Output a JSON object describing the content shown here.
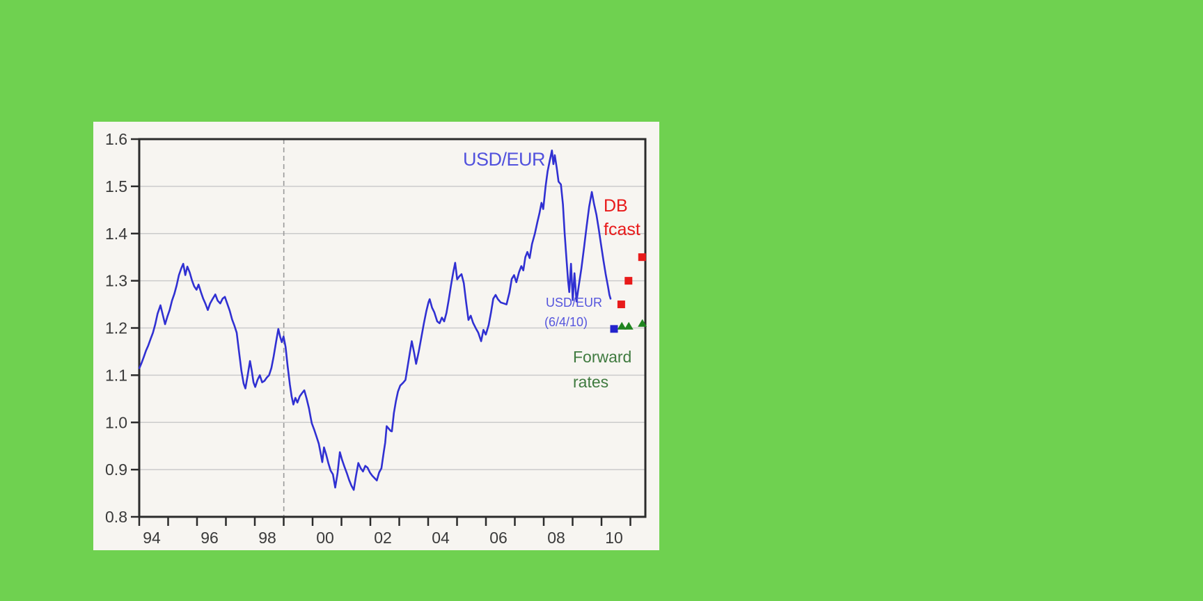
{
  "colors": {
    "background": "#6fd150",
    "card": "#f7f5f1",
    "grid": "#cbcbcb",
    "axis": "#2b2b2b",
    "dashed_line": "#999999",
    "tick_text": "#3a3a3a"
  },
  "annotations": {
    "usd_eur": {
      "text": "USD/EUR",
      "color": "#5151dd"
    },
    "db_fcast": {
      "line1": "DB",
      "line2": "fcast",
      "color": "#e81a1a"
    },
    "spot": {
      "line1": "USD/EUR",
      "line2": "(6/4/10)",
      "color": "#5555dd"
    },
    "forward": {
      "line1": "Forward",
      "line2": "rates",
      "color": "#3f7a3f"
    }
  },
  "chart_data": {
    "type": "line",
    "x_axis": {
      "min": 1993.566,
      "max": 2011.084,
      "minor_tick_start": 1993.566,
      "minor_tick_step": 1,
      "minor_tick_count": 18,
      "labels": [
        [
          1994,
          "94"
        ],
        [
          1996,
          "96"
        ],
        [
          1998,
          "98"
        ],
        [
          2000,
          "00"
        ],
        [
          2002,
          "02"
        ],
        [
          2004,
          "04"
        ],
        [
          2006,
          "06"
        ],
        [
          2008,
          "08"
        ],
        [
          2010,
          "10"
        ]
      ]
    },
    "y_axis": {
      "min": 0.8,
      "max": 1.6,
      "ticks": [
        [
          0.8,
          "0.8"
        ],
        [
          0.9,
          "0.9"
        ],
        [
          1.0,
          "1.0"
        ],
        [
          1.1,
          "1.1"
        ],
        [
          1.2,
          "1.2"
        ],
        [
          1.3,
          "1.3"
        ],
        [
          1.4,
          "1.4"
        ],
        [
          1.5,
          "1.5"
        ],
        [
          1.6,
          "1.6"
        ]
      ]
    },
    "grid": true,
    "event_line_year": 1998.57,
    "series": [
      {
        "name": "USD/EUR",
        "kind": "line",
        "color": "#3030d2",
        "points": [
          [
            1993.57,
            1.115
          ],
          [
            1993.64,
            1.125
          ],
          [
            1993.72,
            1.138
          ],
          [
            1993.8,
            1.152
          ],
          [
            1993.88,
            1.163
          ],
          [
            1993.96,
            1.177
          ],
          [
            1994.04,
            1.19
          ],
          [
            1994.12,
            1.208
          ],
          [
            1994.2,
            1.23
          ],
          [
            1994.3,
            1.248
          ],
          [
            1994.38,
            1.228
          ],
          [
            1994.46,
            1.208
          ],
          [
            1994.54,
            1.224
          ],
          [
            1994.62,
            1.238
          ],
          [
            1994.7,
            1.258
          ],
          [
            1994.78,
            1.272
          ],
          [
            1994.86,
            1.29
          ],
          [
            1994.94,
            1.312
          ],
          [
            1995.02,
            1.326
          ],
          [
            1995.09,
            1.336
          ],
          [
            1995.16,
            1.312
          ],
          [
            1995.23,
            1.33
          ],
          [
            1995.31,
            1.318
          ],
          [
            1995.39,
            1.301
          ],
          [
            1995.47,
            1.288
          ],
          [
            1995.55,
            1.281
          ],
          [
            1995.62,
            1.292
          ],
          [
            1995.7,
            1.276
          ],
          [
            1995.78,
            1.262
          ],
          [
            1995.86,
            1.251
          ],
          [
            1995.94,
            1.238
          ],
          [
            1996.02,
            1.252
          ],
          [
            1996.11,
            1.262
          ],
          [
            1996.2,
            1.271
          ],
          [
            1996.28,
            1.258
          ],
          [
            1996.37,
            1.252
          ],
          [
            1996.45,
            1.262
          ],
          [
            1996.53,
            1.266
          ],
          [
            1996.61,
            1.252
          ],
          [
            1996.7,
            1.236
          ],
          [
            1996.78,
            1.218
          ],
          [
            1996.86,
            1.205
          ],
          [
            1996.94,
            1.19
          ],
          [
            1997.02,
            1.15
          ],
          [
            1997.1,
            1.11
          ],
          [
            1997.18,
            1.082
          ],
          [
            1997.24,
            1.072
          ],
          [
            1997.32,
            1.1
          ],
          [
            1997.4,
            1.13
          ],
          [
            1997.46,
            1.11
          ],
          [
            1997.52,
            1.085
          ],
          [
            1997.58,
            1.075
          ],
          [
            1997.66,
            1.09
          ],
          [
            1997.74,
            1.1
          ],
          [
            1997.82,
            1.085
          ],
          [
            1997.9,
            1.088
          ],
          [
            1997.98,
            1.095
          ],
          [
            1998.06,
            1.1
          ],
          [
            1998.14,
            1.115
          ],
          [
            1998.22,
            1.14
          ],
          [
            1998.3,
            1.17
          ],
          [
            1998.38,
            1.198
          ],
          [
            1998.44,
            1.182
          ],
          [
            1998.5,
            1.17
          ],
          [
            1998.56,
            1.182
          ],
          [
            1998.63,
            1.16
          ],
          [
            1998.7,
            1.12
          ],
          [
            1998.78,
            1.08
          ],
          [
            1998.84,
            1.055
          ],
          [
            1998.9,
            1.038
          ],
          [
            1998.97,
            1.052
          ],
          [
            1999.04,
            1.042
          ],
          [
            1999.12,
            1.055
          ],
          [
            1999.2,
            1.062
          ],
          [
            1999.28,
            1.068
          ],
          [
            1999.36,
            1.05
          ],
          [
            1999.44,
            1.03
          ],
          [
            1999.5,
            1.01
          ],
          [
            1999.54,
            0.998
          ],
          [
            1999.62,
            0.985
          ],
          [
            1999.7,
            0.97
          ],
          [
            1999.78,
            0.955
          ],
          [
            1999.86,
            0.93
          ],
          [
            1999.9,
            0.916
          ],
          [
            1999.96,
            0.947
          ],
          [
            2000.03,
            0.933
          ],
          [
            2000.11,
            0.914
          ],
          [
            2000.19,
            0.898
          ],
          [
            2000.27,
            0.89
          ],
          [
            2000.35,
            0.862
          ],
          [
            2000.43,
            0.893
          ],
          [
            2000.51,
            0.937
          ],
          [
            2000.59,
            0.92
          ],
          [
            2000.67,
            0.906
          ],
          [
            2000.75,
            0.893
          ],
          [
            2000.83,
            0.878
          ],
          [
            2000.91,
            0.866
          ],
          [
            2000.99,
            0.857
          ],
          [
            2001.07,
            0.887
          ],
          [
            2001.15,
            0.914
          ],
          [
            2001.23,
            0.903
          ],
          [
            2001.31,
            0.896
          ],
          [
            2001.39,
            0.908
          ],
          [
            2001.47,
            0.904
          ],
          [
            2001.55,
            0.894
          ],
          [
            2001.63,
            0.887
          ],
          [
            2001.71,
            0.882
          ],
          [
            2001.79,
            0.877
          ],
          [
            2001.87,
            0.894
          ],
          [
            2001.95,
            0.903
          ],
          [
            2002.03,
            0.938
          ],
          [
            2002.08,
            0.957
          ],
          [
            2002.13,
            0.992
          ],
          [
            2002.2,
            0.987
          ],
          [
            2002.27,
            0.982
          ],
          [
            2002.31,
            0.981
          ],
          [
            2002.38,
            1.02
          ],
          [
            2002.45,
            1.045
          ],
          [
            2002.52,
            1.065
          ],
          [
            2002.6,
            1.078
          ],
          [
            2002.7,
            1.084
          ],
          [
            2002.78,
            1.09
          ],
          [
            2002.86,
            1.12
          ],
          [
            2002.94,
            1.15
          ],
          [
            2003.0,
            1.172
          ],
          [
            2003.08,
            1.148
          ],
          [
            2003.15,
            1.124
          ],
          [
            2003.24,
            1.15
          ],
          [
            2003.33,
            1.18
          ],
          [
            2003.42,
            1.21
          ],
          [
            2003.5,
            1.235
          ],
          [
            2003.58,
            1.255
          ],
          [
            2003.62,
            1.261
          ],
          [
            2003.7,
            1.243
          ],
          [
            2003.78,
            1.233
          ],
          [
            2003.88,
            1.214
          ],
          [
            2003.96,
            1.21
          ],
          [
            2004.04,
            1.222
          ],
          [
            2004.12,
            1.214
          ],
          [
            2004.2,
            1.232
          ],
          [
            2004.28,
            1.26
          ],
          [
            2004.36,
            1.292
          ],
          [
            2004.44,
            1.32
          ],
          [
            2004.5,
            1.338
          ],
          [
            2004.57,
            1.303
          ],
          [
            2004.64,
            1.309
          ],
          [
            2004.72,
            1.314
          ],
          [
            2004.8,
            1.295
          ],
          [
            2004.88,
            1.255
          ],
          [
            2004.96,
            1.217
          ],
          [
            2005.04,
            1.226
          ],
          [
            2005.12,
            1.211
          ],
          [
            2005.22,
            1.199
          ],
          [
            2005.3,
            1.19
          ],
          [
            2005.4,
            1.172
          ],
          [
            2005.48,
            1.196
          ],
          [
            2005.56,
            1.186
          ],
          [
            2005.66,
            1.206
          ],
          [
            2005.74,
            1.232
          ],
          [
            2005.82,
            1.262
          ],
          [
            2005.9,
            1.27
          ],
          [
            2005.98,
            1.261
          ],
          [
            2006.08,
            1.254
          ],
          [
            2006.18,
            1.252
          ],
          [
            2006.28,
            1.25
          ],
          [
            2006.38,
            1.275
          ],
          [
            2006.46,
            1.304
          ],
          [
            2006.54,
            1.312
          ],
          [
            2006.62,
            1.297
          ],
          [
            2006.71,
            1.318
          ],
          [
            2006.79,
            1.331
          ],
          [
            2006.86,
            1.322
          ],
          [
            2006.93,
            1.35
          ],
          [
            2007.0,
            1.361
          ],
          [
            2007.08,
            1.348
          ],
          [
            2007.16,
            1.378
          ],
          [
            2007.26,
            1.4
          ],
          [
            2007.35,
            1.425
          ],
          [
            2007.42,
            1.443
          ],
          [
            2007.49,
            1.465
          ],
          [
            2007.55,
            1.452
          ],
          [
            2007.63,
            1.5
          ],
          [
            2007.7,
            1.532
          ],
          [
            2007.78,
            1.556
          ],
          [
            2007.85,
            1.576
          ],
          [
            2007.9,
            1.547
          ],
          [
            2007.95,
            1.566
          ],
          [
            2008.02,
            1.538
          ],
          [
            2008.08,
            1.51
          ],
          [
            2008.16,
            1.504
          ],
          [
            2008.23,
            1.462
          ],
          [
            2008.29,
            1.402
          ],
          [
            2008.35,
            1.35
          ],
          [
            2008.41,
            1.3
          ],
          [
            2008.45,
            1.276
          ],
          [
            2008.51,
            1.336
          ],
          [
            2008.57,
            1.259
          ],
          [
            2008.63,
            1.316
          ],
          [
            2008.7,
            1.256
          ],
          [
            2008.78,
            1.29
          ],
          [
            2008.87,
            1.326
          ],
          [
            2008.96,
            1.37
          ],
          [
            2009.05,
            1.415
          ],
          [
            2009.14,
            1.457
          ],
          [
            2009.23,
            1.488
          ],
          [
            2009.31,
            1.462
          ],
          [
            2009.39,
            1.44
          ],
          [
            2009.47,
            1.41
          ],
          [
            2009.55,
            1.377
          ],
          [
            2009.63,
            1.344
          ],
          [
            2009.71,
            1.314
          ],
          [
            2009.79,
            1.288
          ],
          [
            2009.84,
            1.27
          ],
          [
            2009.88,
            1.262
          ]
        ]
      },
      {
        "name": "DB fcast",
        "kind": "marker",
        "marker": "square",
        "color": "#e81a1a",
        "points": [
          [
            2010.25,
            1.25
          ],
          [
            2010.5,
            1.3
          ],
          [
            2010.97,
            1.35
          ]
        ]
      },
      {
        "name": "USD/EUR (6/4/10)",
        "kind": "marker",
        "marker": "square",
        "color": "#2323cc",
        "points": [
          [
            2010.0,
            1.198
          ]
        ]
      },
      {
        "name": "Forward rates",
        "kind": "marker",
        "marker": "triangle",
        "color": "#1f841f",
        "points": [
          [
            2010.27,
            1.204
          ],
          [
            2010.51,
            1.204
          ],
          [
            2010.98,
            1.21
          ]
        ]
      }
    ]
  }
}
